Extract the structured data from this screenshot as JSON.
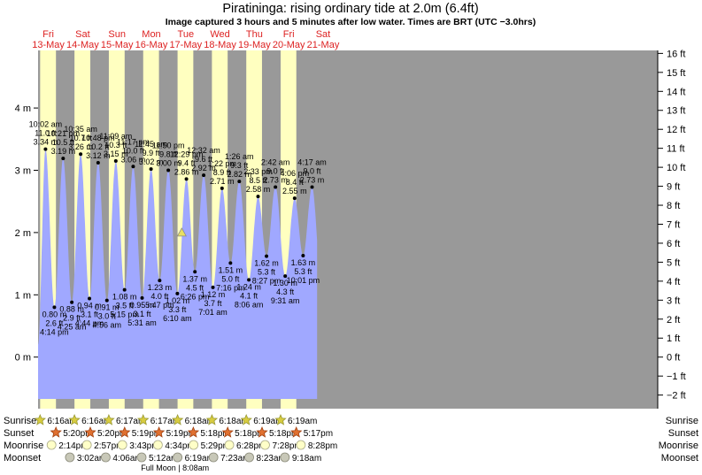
{
  "title": "Piratininga: rising  ordinary tide at 2.0m (6.4ft)",
  "subtitle": "Image captured 3 hours and 5 minutes after low water. Times are BRT (UTC −3.0hrs)",
  "colors": {
    "day": "#ffffc0",
    "night": "#999999",
    "water": "#a0a8ff",
    "date_red": "#dd2222",
    "marker": "#e8e060"
  },
  "chart_data": {
    "type": "area",
    "title": "Piratininga: rising  ordinary tide at 2.0m (6.4ft)",
    "xlabel": "",
    "ylabel": "",
    "y_left_unit": "m",
    "y_right_unit": "ft",
    "ylim_m": [
      -0.7,
      4.9
    ],
    "y_left_ticks": [
      {
        "v": 0,
        "label": "0 m"
      },
      {
        "v": 1,
        "label": "1 m"
      },
      {
        "v": 2,
        "label": "2 m"
      },
      {
        "v": 3,
        "label": "3 m"
      },
      {
        "v": 4,
        "label": "4 m"
      }
    ],
    "y_right_ticks": [
      "−2 ft",
      "−1 ft",
      "0 ft",
      "1 ft",
      "2 ft",
      "3 ft",
      "4 ft",
      "5 ft",
      "6 ft",
      "7 ft",
      "8 ft",
      "9 ft",
      "10 ft",
      "11 ft",
      "12 ft",
      "13 ft",
      "14 ft",
      "15 ft",
      "16 ft"
    ],
    "x_start": "2022-05-13 00:00",
    "days": [
      {
        "dow": "Fri",
        "date": "13-May"
      },
      {
        "dow": "Sat",
        "date": "14-May"
      },
      {
        "dow": "Sun",
        "date": "15-May"
      },
      {
        "dow": "Mon",
        "date": "16-May"
      },
      {
        "dow": "Tue",
        "date": "17-May"
      },
      {
        "dow": "Wed",
        "date": "18-May"
      },
      {
        "dow": "Thu",
        "date": "19-May"
      },
      {
        "dow": "Fri",
        "date": "20-May"
      },
      {
        "dow": "Sat",
        "date": "21-May"
      }
    ],
    "series": [
      {
        "values": [
          {
            "t": "2022-05-13 10:02",
            "time": "10:02 am",
            "ft": "11.0 ft",
            "m": 3.34,
            "ml": "3.34 m",
            "type": "high"
          },
          {
            "t": "2022-05-13 16:14",
            "time": "4:14 pm",
            "ft": "2.6 ft",
            "m": 0.8,
            "ml": "0.80 m",
            "type": "low"
          },
          {
            "t": "2022-05-13 22:21",
            "time": "10:21 pm",
            "ft": "10.5 ft",
            "m": 3.19,
            "ml": "3.19 m",
            "type": "high"
          },
          {
            "t": "2022-05-14 04:25",
            "time": "4:25 am",
            "ft": "2.9 ft",
            "m": 0.88,
            "ml": "0.88 m",
            "type": "low"
          },
          {
            "t": "2022-05-14 10:35",
            "time": "10:35 am",
            "ft": "10.7 ft",
            "m": 3.26,
            "ml": "3.26 m",
            "type": "high"
          },
          {
            "t": "2022-05-14 16:44",
            "time": "4:44 pm",
            "ft": "3.1 ft",
            "m": 0.94,
            "ml": "0.94 m",
            "type": "low"
          },
          {
            "t": "2022-05-14 22:48",
            "time": "10:48 pm",
            "ft": "10.2 ft",
            "m": 3.12,
            "ml": "3.12 m",
            "type": "high"
          },
          {
            "t": "2022-05-15 04:56",
            "time": "4:56 am",
            "ft": "3.0 ft",
            "m": 0.91,
            "ml": "0.91 m",
            "type": "low"
          },
          {
            "t": "2022-05-15 11:09",
            "time": "11:09 am",
            "ft": "10.3 ft",
            "m": 3.15,
            "ml": "3.15 m",
            "type": "high"
          },
          {
            "t": "2022-05-15 17:15",
            "time": "5:15 pm",
            "ft": "3.5 ft",
            "m": 1.08,
            "ml": "1.08 m",
            "type": "low"
          },
          {
            "t": "2022-05-15 23:17",
            "time": "11:17 pm",
            "ft": "10.0 ft",
            "m": 3.06,
            "ml": "3.06 m",
            "type": "high"
          },
          {
            "t": "2022-05-16 05:31",
            "time": "5:31 am",
            "ft": "3.1 ft",
            "m": 0.95,
            "ml": "0.95 m",
            "type": "low"
          },
          {
            "t": "2022-05-16 11:45",
            "time": "11:45 am",
            "ft": "9.9 ft",
            "m": 3.02,
            "ml": "3.02 m",
            "type": "high"
          },
          {
            "t": "2022-05-16 17:47",
            "time": "5:47 pm",
            "ft": "4.0 ft",
            "m": 1.23,
            "ml": "1.23 m",
            "type": "low"
          },
          {
            "t": "2022-05-16 23:50",
            "time": "11:50 pm",
            "ft": "9.8 ft",
            "m": 3.0,
            "ml": "3.00 m",
            "type": "high"
          },
          {
            "t": "2022-05-17 06:10",
            "time": "6:10 am",
            "ft": "3.3 ft",
            "m": 1.02,
            "ml": "1.02 m",
            "type": "low"
          },
          {
            "t": "2022-05-17 12:29",
            "time": "12:29 pm",
            "ft": "9.4 ft",
            "m": 2.86,
            "ml": "2.86 m",
            "type": "high"
          },
          {
            "t": "2022-05-17 18:26",
            "time": "6:26 pm",
            "ft": "4.5 ft",
            "m": 1.37,
            "ml": "1.37 m",
            "type": "low"
          },
          {
            "t": "2022-05-18 00:32",
            "time": "12:32 am",
            "ft": "9.6 ft",
            "m": 2.92,
            "ml": "2.92 m",
            "type": "high"
          },
          {
            "t": "2022-05-18 07:01",
            "time": "7:01 am",
            "ft": "3.7 ft",
            "m": 1.12,
            "ml": "1.12 m",
            "type": "low"
          },
          {
            "t": "2022-05-18 13:22",
            "time": "1:22 pm",
            "ft": "8.9 ft",
            "m": 2.71,
            "ml": "2.71 m",
            "type": "high"
          },
          {
            "t": "2022-05-18 19:16",
            "time": "7:16 pm",
            "ft": "5.0 ft",
            "m": 1.51,
            "ml": "1.51 m",
            "type": "low"
          },
          {
            "t": "2022-05-19 01:26",
            "time": "1:26 am",
            "ft": "9.3 ft",
            "m": 2.82,
            "ml": "2.82 m",
            "type": "high"
          },
          {
            "t": "2022-05-19 08:06",
            "time": "8:06 am",
            "ft": "4.1 ft",
            "m": 1.24,
            "ml": "1.24 m",
            "type": "low"
          },
          {
            "t": "2022-05-19 14:33",
            "time": "2:33 pm",
            "ft": "8.5 ft",
            "m": 2.58,
            "ml": "2.58 m",
            "type": "high"
          },
          {
            "t": "2022-05-19 20:27",
            "time": "8:27 pm",
            "ft": "5.3 ft",
            "m": 1.62,
            "ml": "1.62 m",
            "type": "low"
          },
          {
            "t": "2022-05-20 02:42",
            "time": "2:42 am",
            "ft": "9.0 ft",
            "m": 2.73,
            "ml": "2.73 m",
            "type": "high"
          },
          {
            "t": "2022-05-20 09:31",
            "time": "9:31 am",
            "ft": "4.3 ft",
            "m": 1.3,
            "ml": "1.30 m",
            "type": "low"
          },
          {
            "t": "2022-05-20 16:06",
            "time": "4:06 pm",
            "ft": "8.4 ft",
            "m": 2.55,
            "ml": "2.55 m",
            "type": "high"
          },
          {
            "t": "2022-05-20 22:01",
            "time": "10:01 pm",
            "ft": "5.3 ft",
            "m": 1.63,
            "ml": "1.63 m",
            "type": "low"
          },
          {
            "t": "2022-05-21 04:17",
            "time": "4:17 am",
            "ft": "9.0 ft",
            "m": 2.73,
            "ml": "2.73 m",
            "type": "high"
          }
        ]
      }
    ],
    "current_marker": {
      "t": "2022-05-17 09:15",
      "m": 2.0
    },
    "data_start": "2022-05-13 04:50",
    "data_end": "2022-05-21 08:00"
  },
  "almanac": {
    "labels": {
      "sunrise": "Sunrise",
      "sunset": "Sunset",
      "moonrise": "Moonrise",
      "moonset": "Moonset"
    },
    "sunrise": [
      {
        "t": "2022-05-13 06:16",
        "label": "6:16am"
      },
      {
        "t": "2022-05-14 06:16",
        "label": "6:16am"
      },
      {
        "t": "2022-05-15 06:17",
        "label": "6:17am"
      },
      {
        "t": "2022-05-16 06:17",
        "label": "6:17am"
      },
      {
        "t": "2022-05-17 06:18",
        "label": "6:18am"
      },
      {
        "t": "2022-05-18 06:18",
        "label": "6:18am"
      },
      {
        "t": "2022-05-19 06:19",
        "label": "6:19am"
      },
      {
        "t": "2022-05-20 06:19",
        "label": "6:19am"
      }
    ],
    "sunset": [
      {
        "t": "2022-05-13 17:20",
        "label": "5:20pm"
      },
      {
        "t": "2022-05-14 17:20",
        "label": "5:20pm"
      },
      {
        "t": "2022-05-15 17:19",
        "label": "5:19pm"
      },
      {
        "t": "2022-05-16 17:19",
        "label": "5:19pm"
      },
      {
        "t": "2022-05-17 17:18",
        "label": "5:18pm"
      },
      {
        "t": "2022-05-18 17:18",
        "label": "5:18pm"
      },
      {
        "t": "2022-05-19 17:18",
        "label": "5:18pm"
      },
      {
        "t": "2022-05-20 17:17",
        "label": "5:17pm"
      }
    ],
    "moonrise": [
      {
        "t": "2022-05-13 14:14",
        "label": "2:14pm"
      },
      {
        "t": "2022-05-14 14:57",
        "label": "2:57pm"
      },
      {
        "t": "2022-05-15 15:43",
        "label": "3:43pm"
      },
      {
        "t": "2022-05-16 16:34",
        "label": "4:34pm"
      },
      {
        "t": "2022-05-17 17:29",
        "label": "5:29pm"
      },
      {
        "t": "2022-05-18 18:28",
        "label": "6:28pm"
      },
      {
        "t": "2022-05-19 19:28",
        "label": "7:28pm"
      },
      {
        "t": "2022-05-20 20:28",
        "label": "8:28pm"
      }
    ],
    "moonset": [
      {
        "t": "2022-05-14 03:02",
        "label": "3:02am"
      },
      {
        "t": "2022-05-15 04:06",
        "label": "4:06am"
      },
      {
        "t": "2022-05-16 05:12",
        "label": "5:12am"
      },
      {
        "t": "2022-05-17 06:19",
        "label": "6:19am"
      },
      {
        "t": "2022-05-18 07:23",
        "label": "7:23am"
      },
      {
        "t": "2022-05-19 08:23",
        "label": "8:23am"
      },
      {
        "t": "2022-05-20 09:18",
        "label": "9:18am"
      }
    ],
    "moon_phase": {
      "t": "2022-05-16 08:08",
      "label": "Full Moon | 8:08am"
    }
  }
}
